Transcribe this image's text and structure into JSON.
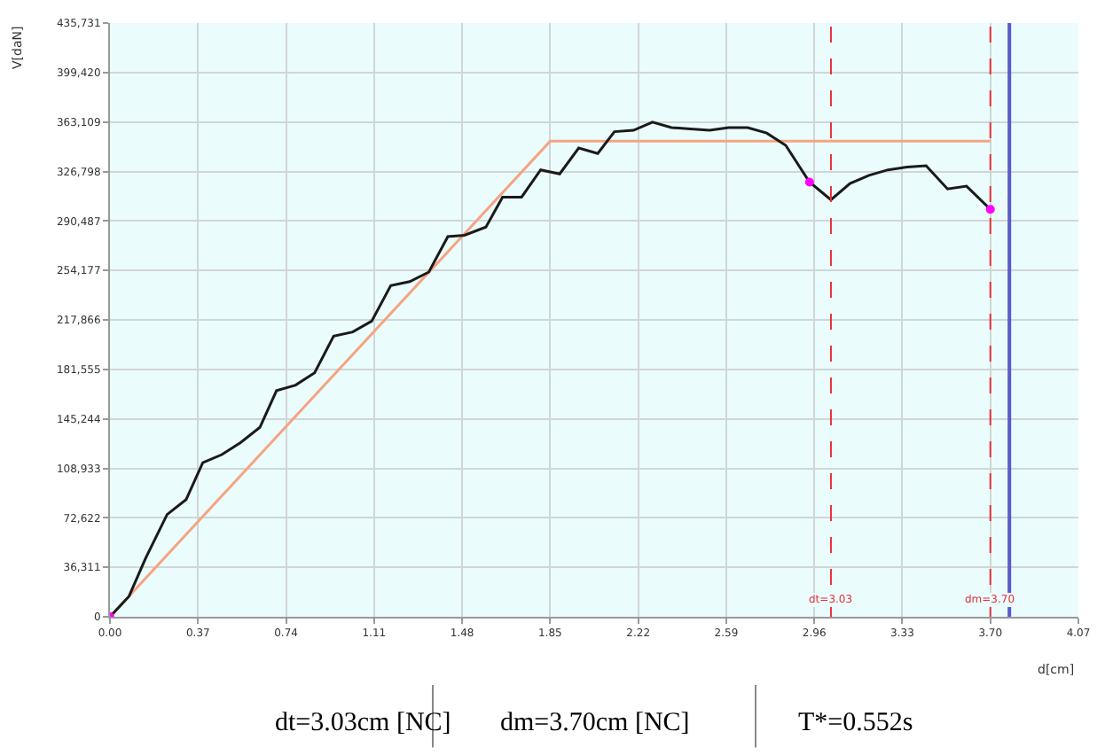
{
  "chart_data": {
    "type": "line",
    "xlabel": "d[cm]",
    "ylabel": "V[daN]",
    "series": [
      {
        "type": "line",
        "color": "#f4a582",
        "x": [
          0,
          1.85,
          3.7
        ],
        "values": [
          0,
          349000,
          349000
        ],
        "marker": "none"
      },
      {
        "type": "line",
        "color": "#1a1a1a",
        "marker": "none",
        "x": [
          0,
          0.08,
          0.15,
          0.24,
          0.32,
          0.39,
          0.47,
          0.55,
          0.63,
          0.7,
          0.78,
          0.86,
          0.94,
          1.02,
          1.1,
          1.18,
          1.26,
          1.34,
          1.42,
          1.49,
          1.58,
          1.65,
          1.73,
          1.81,
          1.89,
          1.97,
          2.05,
          2.12,
          2.2,
          2.28,
          2.36,
          2.44,
          2.52,
          2.6,
          2.68,
          2.76,
          2.84,
          2.94,
          3.03,
          3.11,
          3.19,
          3.27,
          3.35,
          3.43,
          3.52,
          3.6,
          3.7
        ],
        "values": [
          0,
          15000,
          43000,
          75000,
          86000,
          113000,
          119000,
          128000,
          139000,
          166000,
          170000,
          179000,
          206000,
          209000,
          217000,
          243000,
          246000,
          253000,
          279000,
          280000,
          286000,
          308000,
          308000,
          328000,
          325000,
          344000,
          340000,
          356000,
          357000,
          363000,
          359000,
          358000,
          357000,
          359000,
          359000,
          355000,
          346000,
          319000,
          306000,
          318000,
          324000,
          328000,
          330000,
          331000,
          314000,
          316000,
          299000
        ]
      },
      {
        "type": "scatter",
        "color": "#ff00ff",
        "marker": "circle",
        "x": [
          0,
          2.94,
          3.7
        ],
        "values": [
          0,
          319000,
          299000
        ]
      }
    ],
    "xlim": [
      0,
      4.07
    ],
    "xticks": [
      {
        "value": 0,
        "label": "0.00"
      },
      0.37,
      0.74,
      1.11,
      1.48,
      1.85,
      2.22,
      2.59,
      2.96,
      3.33,
      {
        "value": 3.7,
        "label": "3.70"
      },
      4.07
    ],
    "ylim": [
      0,
      435731
    ],
    "yticks": [
      0,
      {
        "value": 36311,
        "label": "36,311"
      },
      {
        "value": 72622,
        "label": "72,622"
      },
      {
        "value": 108933,
        "label": "108,933"
      },
      {
        "value": 145244,
        "label": "145,244"
      },
      {
        "value": 181555,
        "label": "181,555"
      },
      {
        "value": 217866,
        "label": "217,866"
      },
      {
        "value": 254177,
        "label": "254,177"
      },
      {
        "value": 290487,
        "label": "290,487"
      },
      {
        "value": 326798,
        "label": "326,798"
      },
      {
        "value": 363109,
        "label": "363,109"
      },
      {
        "value": 399420,
        "label": "399,420"
      },
      {
        "value": 435731,
        "label": "435,731"
      }
    ],
    "ref_lines": [
      {
        "axis": "x",
        "value": 3.03,
        "label": "dt=3.03",
        "color": "#e8303a",
        "line_style": "dashed"
      },
      {
        "axis": "x",
        "value": 3.7,
        "label": "dm=3.70",
        "color": "#e8303a",
        "line_style": "dashed"
      },
      {
        "axis": "x",
        "value": 3.78,
        "color": "#5a5acd",
        "line_style": "solid"
      }
    ],
    "annotations": [
      "dt=3.03cm [NC]",
      "dm=3.70cm [NC]",
      "T*=0.552s"
    ],
    "grid": true
  }
}
